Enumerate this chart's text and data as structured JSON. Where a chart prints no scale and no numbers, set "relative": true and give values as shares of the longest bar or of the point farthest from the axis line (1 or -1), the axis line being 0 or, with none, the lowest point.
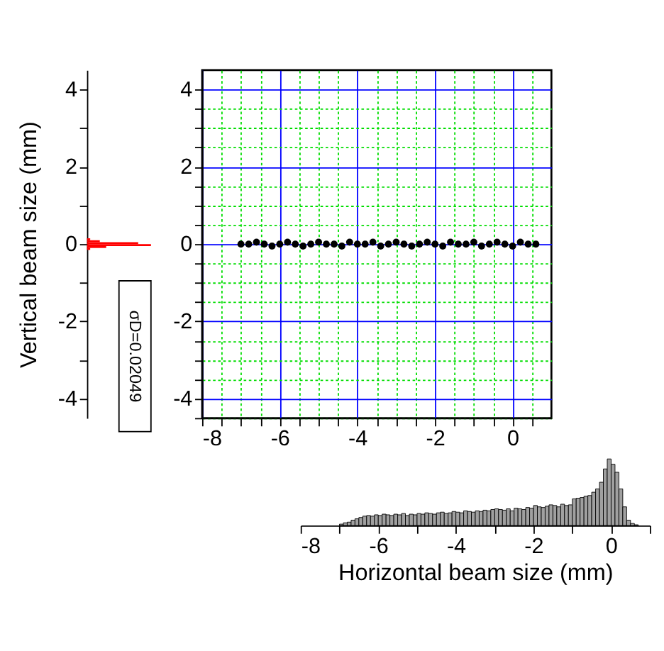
{
  "chart_data": [
    {
      "type": "bar",
      "orientation": "horizontal",
      "relative": true,
      "ylabel": "Vertical beam size (mm)",
      "color": "#ff0000",
      "tick_labels": "y",
      "x": [
        -0.125,
        -0.075,
        -0.025,
        0.025,
        0.075,
        0.125
      ],
      "values": [
        0.05,
        0.3,
        1,
        0.8,
        0.2,
        0.05
      ],
      "ylim": [
        -4.5,
        4.5
      ],
      "yticks": [
        -4,
        {
          "value": -3,
          "label": null
        },
        -2,
        {
          "value": -1,
          "label": null
        },
        0,
        {
          "value": 1,
          "label": null
        },
        2,
        {
          "value": 3,
          "label": null
        },
        4
      ],
      "annotations": [
        "σD=0.02049"
      ]
    },
    {
      "type": "scatter",
      "marker": "circle",
      "grid": true,
      "color": "#000000",
      "x": [
        -7.0,
        -6.8,
        -6.6,
        -6.4,
        -6.2,
        -6.0,
        -5.8,
        -5.6,
        -5.4,
        -5.2,
        -5.0,
        -4.8,
        -4.6,
        -4.4,
        -4.2,
        -4.0,
        -3.8,
        -3.6,
        -3.4,
        -3.2,
        -3.0,
        -2.8,
        -2.6,
        -2.4,
        -2.2,
        -2.0,
        -1.8,
        -1.6,
        -1.4,
        -1.2,
        -1.0,
        -0.8,
        -0.6,
        -0.4,
        -0.2,
        0.0,
        0.2,
        0.4,
        0.6
      ],
      "values": [
        0,
        0,
        0.05,
        0,
        -0.05,
        0,
        0.05,
        0,
        -0.05,
        0,
        0.05,
        0,
        0,
        -0.05,
        0.05,
        0,
        0,
        0.05,
        -0.05,
        0,
        0.05,
        0,
        -0.05,
        0,
        0.05,
        0,
        -0.05,
        0.05,
        0,
        0,
        0.05,
        -0.05,
        0,
        0.05,
        0,
        -0.05,
        0.05,
        0,
        0
      ],
      "xlim": [
        -8,
        1
      ],
      "ylim": [
        -4.5,
        4.5
      ],
      "xticks": [
        -8,
        {
          "value": -7.5,
          "label": null
        },
        {
          "value": -7,
          "label": null
        },
        {
          "value": -6.5,
          "label": null
        },
        -6,
        {
          "value": -5.5,
          "label": null
        },
        {
          "value": -5,
          "label": null
        },
        {
          "value": -4.5,
          "label": null
        },
        -4,
        {
          "value": -3.5,
          "label": null
        },
        {
          "value": -3,
          "label": null
        },
        {
          "value": -2.5,
          "label": null
        },
        -2,
        {
          "value": -1.5,
          "label": null
        },
        {
          "value": -1,
          "label": null
        },
        {
          "value": -0.5,
          "label": null
        },
        0,
        {
          "value": 0.5,
          "label": null
        }
      ],
      "yticks": [
        {
          "value": -4.5,
          "label": null
        },
        -4,
        {
          "value": -3.5,
          "label": null
        },
        {
          "value": -3,
          "label": null
        },
        {
          "value": -2.5,
          "label": null
        },
        -2,
        {
          "value": -1.5,
          "label": null
        },
        {
          "value": -1,
          "label": null
        },
        {
          "value": -0.5,
          "label": null
        },
        0,
        {
          "value": 0.5,
          "label": null
        },
        {
          "value": 1,
          "label": null
        },
        {
          "value": 1.5,
          "label": null
        },
        2,
        {
          "value": 2.5,
          "label": null
        },
        {
          "value": 3,
          "label": null
        },
        {
          "value": 3.5,
          "label": null
        },
        4
      ]
    },
    {
      "type": "bar",
      "relative": true,
      "xlabel": "Horizontal beam size (mm)",
      "color": "#a0a0a0",
      "tick_labels": "x",
      "x": [
        -6.95,
        -6.85,
        -6.75,
        -6.65,
        -6.55,
        -6.45,
        -6.35,
        -6.25,
        -6.15,
        -6.05,
        -5.95,
        -5.85,
        -5.75,
        -5.65,
        -5.55,
        -5.45,
        -5.35,
        -5.25,
        -5.15,
        -5.05,
        -4.95,
        -4.85,
        -4.75,
        -4.65,
        -4.55,
        -4.45,
        -4.35,
        -4.25,
        -4.15,
        -4.05,
        -3.95,
        -3.85,
        -3.75,
        -3.65,
        -3.55,
        -3.45,
        -3.35,
        -3.25,
        -3.15,
        -3.05,
        -2.95,
        -2.85,
        -2.75,
        -2.65,
        -2.55,
        -2.45,
        -2.35,
        -2.25,
        -2.15,
        -2.05,
        -1.95,
        -1.85,
        -1.75,
        -1.65,
        -1.55,
        -1.45,
        -1.35,
        -1.25,
        -1.15,
        -1.05,
        -0.95,
        -0.85,
        -0.75,
        -0.65,
        -0.55,
        -0.45,
        -0.35,
        -0.25,
        -0.15,
        -0.05,
        0.05,
        0.15,
        0.25,
        0.35,
        0.45,
        0.55,
        0.65
      ],
      "values": [
        0.02,
        0.04,
        0.05,
        0.08,
        0.1,
        0.12,
        0.14,
        0.15,
        0.14,
        0.16,
        0.15,
        0.17,
        0.16,
        0.15,
        0.17,
        0.16,
        0.18,
        0.15,
        0.17,
        0.16,
        0.18,
        0.17,
        0.19,
        0.18,
        0.17,
        0.19,
        0.2,
        0.18,
        0.19,
        0.21,
        0.2,
        0.19,
        0.22,
        0.21,
        0.2,
        0.22,
        0.21,
        0.23,
        0.22,
        0.24,
        0.25,
        0.24,
        0.23,
        0.25,
        0.22,
        0.26,
        0.25,
        0.24,
        0.27,
        0.26,
        0.3,
        0.28,
        0.27,
        0.29,
        0.31,
        0.3,
        0.28,
        0.32,
        0.3,
        0.31,
        0.4,
        0.41,
        0.42,
        0.44,
        0.45,
        0.5,
        0.55,
        0.65,
        0.85,
        1.0,
        0.92,
        0.8,
        0.55,
        0.28,
        0.08,
        0.03,
        0.01
      ],
      "xlim": [
        -8,
        1
      ],
      "xticks": [
        -8,
        {
          "value": -7,
          "label": null
        },
        -6,
        {
          "value": -5,
          "label": null
        },
        -4,
        {
          "value": -3,
          "label": null
        },
        -2,
        {
          "value": -1,
          "label": null
        },
        0,
        {
          "value": 1,
          "label": null
        }
      ]
    }
  ]
}
